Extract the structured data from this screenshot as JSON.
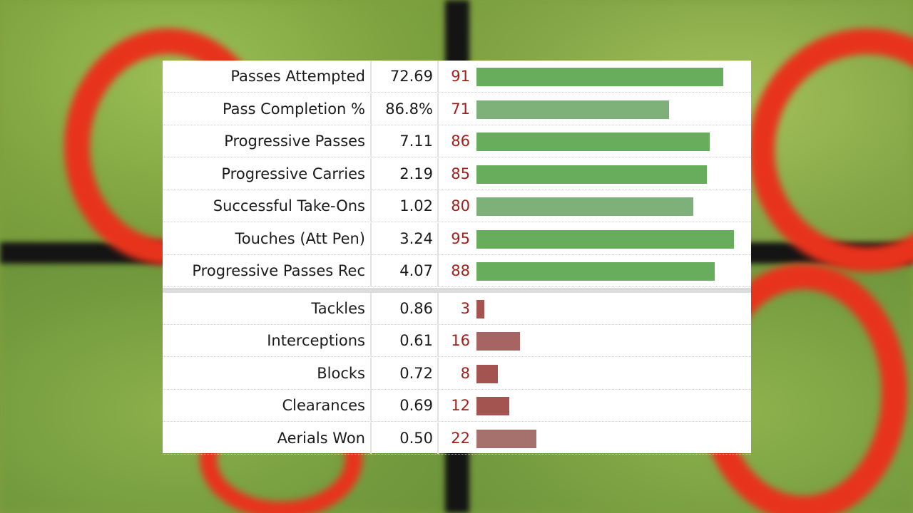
{
  "chart_data": {
    "type": "bar",
    "orientation": "horizontal",
    "columns": [
      "stat",
      "per90",
      "percentile"
    ],
    "xlim": [
      0,
      100
    ],
    "groups": [
      {
        "rows": [
          {
            "label": "Passes Attempted",
            "value": "72.69",
            "percentile": 91,
            "color": "#67ad5b"
          },
          {
            "label": "Pass Completion %",
            "value": "86.8%",
            "percentile": 71,
            "color": "#7eb07a"
          },
          {
            "label": "Progressive Passes",
            "value": "7.11",
            "percentile": 86,
            "color": "#67ad5b"
          },
          {
            "label": "Progressive Carries",
            "value": "2.19",
            "percentile": 85,
            "color": "#67ad5b"
          },
          {
            "label": "Successful Take-Ons",
            "value": "1.02",
            "percentile": 80,
            "color": "#7eb07a"
          },
          {
            "label": "Touches (Att Pen)",
            "value": "3.24",
            "percentile": 95,
            "color": "#67ad5b"
          },
          {
            "label": "Progressive Passes Rec",
            "value": "4.07",
            "percentile": 88,
            "color": "#67ad5b"
          }
        ]
      },
      {
        "rows": [
          {
            "label": "Tackles",
            "value": "0.86",
            "percentile": 3,
            "color": "#a35451"
          },
          {
            "label": "Interceptions",
            "value": "0.61",
            "percentile": 16,
            "color": "#a66562"
          },
          {
            "label": "Blocks",
            "value": "0.72",
            "percentile": 8,
            "color": "#a35451"
          },
          {
            "label": "Clearances",
            "value": "0.69",
            "percentile": 12,
            "color": "#a35451"
          },
          {
            "label": "Aerials Won",
            "value": "0.50",
            "percentile": 22,
            "color": "#a6706d"
          }
        ]
      }
    ]
  }
}
